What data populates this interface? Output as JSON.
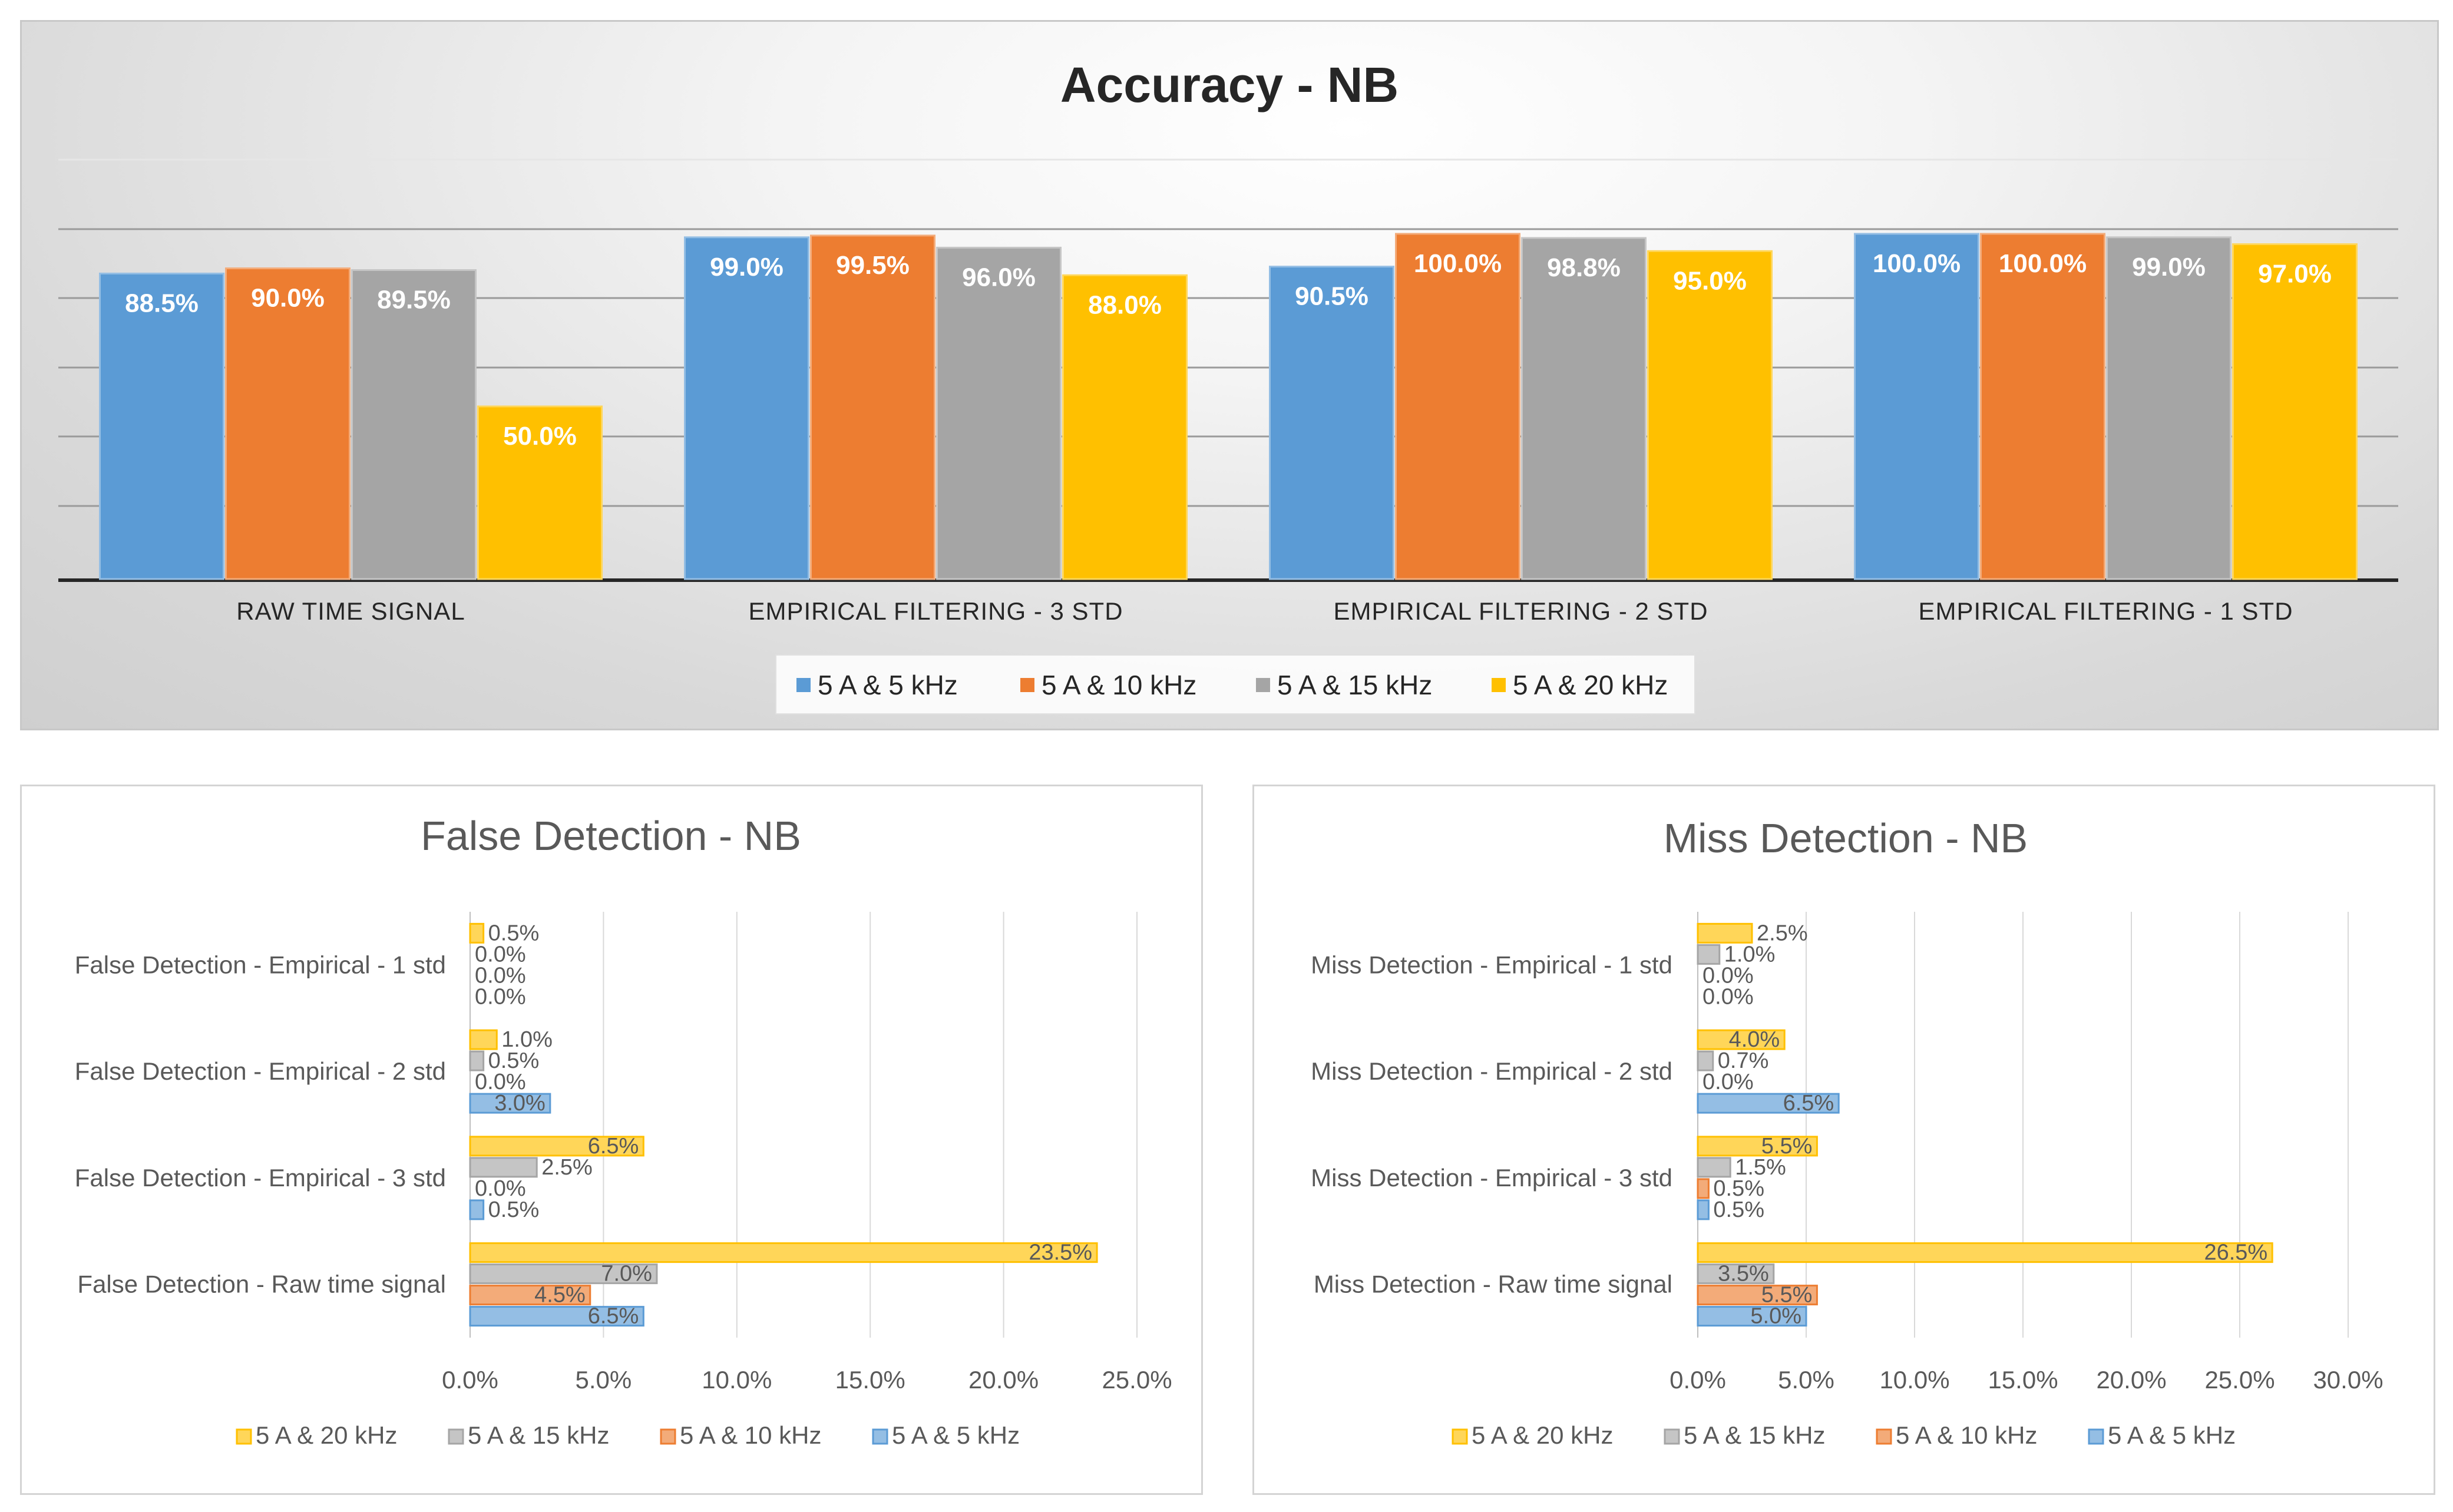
{
  "chart_data": [
    {
      "type": "bar",
      "title": "Accuracy - NB",
      "categories": [
        "RAW TIME SIGNAL",
        "EMPIRICAL FILTERING - 3 STD",
        "EMPIRICAL FILTERING - 2 STD",
        "EMPIRICAL FILTERING - 1 STD"
      ],
      "series": [
        {
          "name": "5 A & 5 kHz",
          "values": [
            88.5,
            99.0,
            90.5,
            100.0
          ],
          "labels": [
            "88.5%",
            "99.0%",
            "90.5%",
            "100.0%"
          ],
          "color": "#5b9bd5"
        },
        {
          "name": "5 A & 10 kHz",
          "values": [
            90.0,
            99.5,
            100.0,
            100.0
          ],
          "labels": [
            "90.0%",
            "99.5%",
            "100.0%",
            "100.0%"
          ],
          "color": "#ed7d31"
        },
        {
          "name": "5 A & 15 kHz",
          "values": [
            89.5,
            96.0,
            98.8,
            99.0
          ],
          "labels": [
            "89.5%",
            "96.0%",
            "98.8%",
            "99.0%"
          ],
          "color": "#a5a5a5"
        },
        {
          "name": "5 A & 20 kHz",
          "values": [
            50.0,
            88.0,
            95.0,
            97.0
          ],
          "labels": [
            "50.0%",
            "88.0%",
            "95.0%",
            "97.0%"
          ],
          "color": "#ffc000"
        }
      ],
      "ylim": [
        0,
        100
      ],
      "grid": true,
      "legend": "bottom"
    },
    {
      "type": "bar",
      "orientation": "horizontal",
      "title": "False Detection  - NB",
      "categories": [
        "False Detection - Raw time signal",
        "False Detection - Empirical - 3 std",
        "False Detection - Empirical - 2 std",
        "False Detection - Empirical - 1 std"
      ],
      "series": [
        {
          "name": "5 A & 20 kHz",
          "values": [
            23.5,
            6.5,
            1.0,
            0.5
          ],
          "labels": [
            "23.5%",
            "6.5%",
            "1.0%",
            "0.5%"
          ],
          "color": "#ffc000"
        },
        {
          "name": "5 A & 15 kHz",
          "values": [
            7.0,
            2.5,
            0.5,
            0.0
          ],
          "labels": [
            "7.0%",
            "2.5%",
            "0.5%",
            "0.0%"
          ],
          "color": "#a5a5a5"
        },
        {
          "name": "5 A & 10 kHz",
          "values": [
            4.5,
            0.0,
            0.0,
            0.0
          ],
          "labels": [
            "4.5%",
            "0.0%",
            "0.0%",
            "0.0%"
          ],
          "color": "#ed7d31"
        },
        {
          "name": "5 A & 5 kHz",
          "values": [
            6.5,
            0.5,
            3.0,
            0.0
          ],
          "labels": [
            "6.5%",
            "0.5%",
            "3.0%",
            "0.0%"
          ],
          "color": "#5b9bd5"
        }
      ],
      "xlim": [
        0,
        25
      ],
      "ticks": [
        "0.0%",
        "5.0%",
        "10.0%",
        "15.0%",
        "20.0%",
        "25.0%"
      ],
      "legend": "bottom"
    },
    {
      "type": "bar",
      "orientation": "horizontal",
      "title": "Miss Detection  - NB",
      "categories": [
        "Miss Detection - Raw time signal",
        "Miss Detection - Empirical - 3 std",
        "Miss Detection - Empirical - 2 std",
        "Miss Detection - Empirical - 1 std"
      ],
      "series": [
        {
          "name": "5 A & 20 kHz",
          "values": [
            26.5,
            5.5,
            4.0,
            2.5
          ],
          "labels": [
            "26.5%",
            "5.5%",
            "4.0%",
            "2.5%"
          ],
          "color": "#ffc000"
        },
        {
          "name": "5 A & 15 kHz",
          "values": [
            3.5,
            1.5,
            0.7,
            1.0
          ],
          "labels": [
            "3.5%",
            "1.5%",
            "0.7%",
            "1.0%"
          ],
          "color": "#a5a5a5"
        },
        {
          "name": "5 A & 10 kHz",
          "values": [
            5.5,
            0.5,
            0.0,
            0.0
          ],
          "labels": [
            "5.5%",
            "0.5%",
            "0.0%",
            "0.0%"
          ],
          "color": "#ed7d31"
        },
        {
          "name": "5 A & 5 kHz",
          "values": [
            5.0,
            0.5,
            6.5,
            0.0
          ],
          "labels": [
            "5.0%",
            "0.5%",
            "6.5%",
            "0.0%"
          ],
          "color": "#5b9bd5"
        }
      ],
      "xlim": [
        0,
        30
      ],
      "ticks": [
        "0.0%",
        "5.0%",
        "10.0%",
        "15.0%",
        "20.0%",
        "25.0%",
        "30.0%"
      ],
      "legend": "bottom"
    }
  ]
}
